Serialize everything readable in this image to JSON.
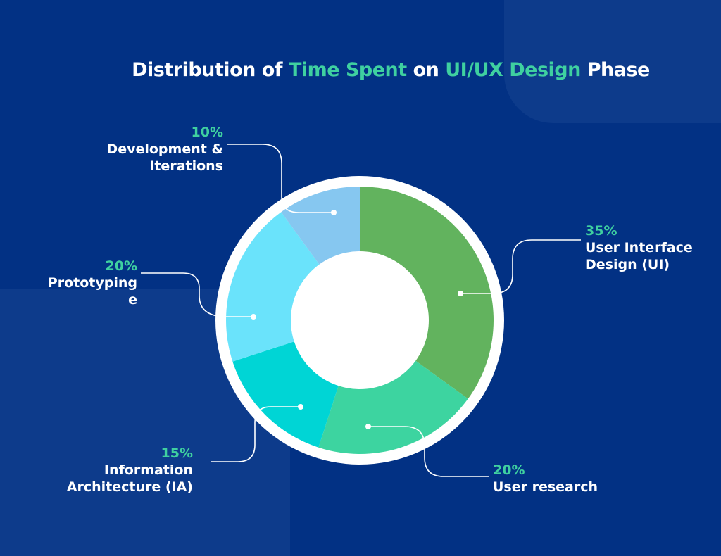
{
  "title": {
    "part1": "Distribution of ",
    "part2": "Time Spent",
    "part3": " on ",
    "part4": "UI/UX Design",
    "part5": " Phase"
  },
  "colors": {
    "background": "#023184",
    "accent": "#3fd0a0"
  },
  "chart_data": {
    "type": "pie",
    "donut": true,
    "title": "Distribution of Time Spent on UI/UX Design Phase",
    "slices": [
      {
        "label_line1": "User Interface",
        "label_line2": "Design (UI)",
        "value": 35,
        "pct": "35%",
        "color": "#62b35e"
      },
      {
        "label_line1": "User research",
        "label_line2": "",
        "value": 20,
        "pct": "20%",
        "color": "#3dd4a0"
      },
      {
        "label_line1": "Information",
        "label_line2": "Architecture (IA)",
        "value": 15,
        "pct": "15%",
        "color": "#00d5d5"
      },
      {
        "label_line1": "Prototyping",
        "label_line2": "e",
        "value": 20,
        "pct": "20%",
        "color": "#6ae3fb"
      },
      {
        "label_line1": "Development &",
        "label_line2": "Iterations",
        "value": 10,
        "pct": "10%",
        "color": "#86c7f0"
      }
    ]
  }
}
